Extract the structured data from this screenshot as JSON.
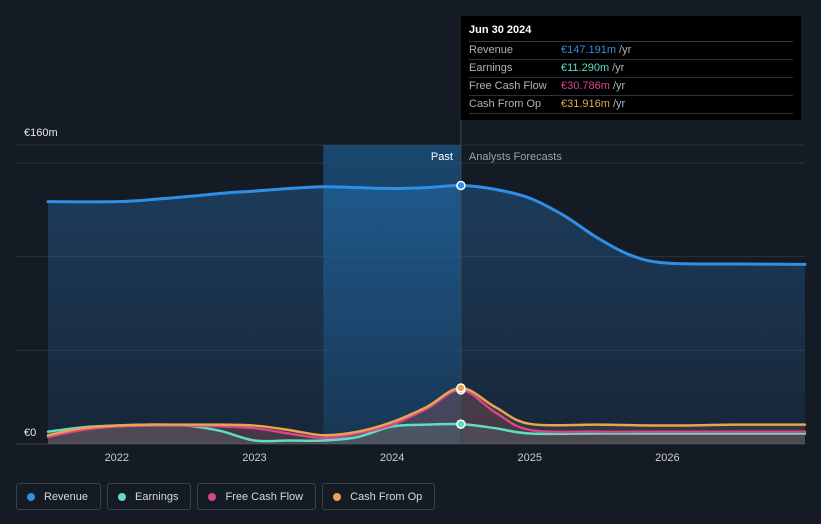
{
  "chart_data": {
    "type": "area",
    "y_axis": {
      "top_label": "€160m",
      "bottom_label": "€0",
      "ylim": [
        0,
        160
      ]
    },
    "x_axis": {
      "ticks": [
        "2022",
        "2023",
        "2024",
        "2025",
        "2026"
      ],
      "xlim": [
        2021.5,
        2027.0
      ]
    },
    "divider_x": 2024.5,
    "past_label": "Past",
    "forecast_label": "Analysts Forecasts",
    "series": [
      {
        "name": "Revenue",
        "color": "#2f8fe6",
        "points": [
          [
            2021.5,
            138
          ],
          [
            2022.0,
            138
          ],
          [
            2022.3,
            139.5
          ],
          [
            2022.6,
            141.5
          ],
          [
            2022.8,
            143
          ],
          [
            2023.0,
            144
          ],
          [
            2023.25,
            145.5
          ],
          [
            2023.5,
            146.5
          ],
          [
            2023.75,
            146
          ],
          [
            2024.0,
            145.5
          ],
          [
            2024.25,
            146
          ],
          [
            2024.5,
            147.2
          ],
          [
            2024.75,
            145
          ],
          [
            2025.0,
            140
          ],
          [
            2025.25,
            130
          ],
          [
            2025.5,
            117
          ],
          [
            2025.75,
            107
          ],
          [
            2026.0,
            103
          ],
          [
            2026.5,
            102.5
          ],
          [
            2027.0,
            102.3
          ]
        ]
      },
      {
        "name": "Earnings",
        "color": "#5fdcc2",
        "points": [
          [
            2021.5,
            7
          ],
          [
            2021.75,
            9.5
          ],
          [
            2022.0,
            10.5
          ],
          [
            2022.25,
            11
          ],
          [
            2022.5,
            10.5
          ],
          [
            2022.75,
            7.5
          ],
          [
            2023.0,
            2
          ],
          [
            2023.25,
            2
          ],
          [
            2023.5,
            2
          ],
          [
            2023.75,
            4
          ],
          [
            2024.0,
            10
          ],
          [
            2024.25,
            11
          ],
          [
            2024.5,
            11.3
          ],
          [
            2024.75,
            9
          ],
          [
            2025.0,
            6
          ],
          [
            2025.5,
            6
          ],
          [
            2026.0,
            6
          ],
          [
            2026.5,
            6
          ],
          [
            2027.0,
            6
          ]
        ]
      },
      {
        "name": "Free Cash Flow",
        "color": "#d9458a",
        "points": [
          [
            2021.5,
            4
          ],
          [
            2021.75,
            8
          ],
          [
            2022.0,
            10
          ],
          [
            2022.25,
            10.5
          ],
          [
            2022.5,
            10.5
          ],
          [
            2022.75,
            10
          ],
          [
            2023.0,
            9
          ],
          [
            2023.25,
            6
          ],
          [
            2023.5,
            3.5
          ],
          [
            2023.75,
            6
          ],
          [
            2024.0,
            11
          ],
          [
            2024.25,
            20
          ],
          [
            2024.5,
            30.8
          ],
          [
            2024.75,
            18
          ],
          [
            2025.0,
            8
          ],
          [
            2025.5,
            7
          ],
          [
            2026.0,
            7
          ],
          [
            2026.5,
            7
          ],
          [
            2027.0,
            7
          ]
        ]
      },
      {
        "name": "Cash From Op",
        "color": "#e8a451",
        "points": [
          [
            2021.5,
            5
          ],
          [
            2021.75,
            9
          ],
          [
            2022.0,
            10.5
          ],
          [
            2022.25,
            11
          ],
          [
            2022.5,
            11
          ],
          [
            2022.75,
            11
          ],
          [
            2023.0,
            10.5
          ],
          [
            2023.25,
            8
          ],
          [
            2023.5,
            5
          ],
          [
            2023.75,
            7
          ],
          [
            2024.0,
            12.5
          ],
          [
            2024.25,
            21
          ],
          [
            2024.5,
            31.9
          ],
          [
            2024.75,
            21
          ],
          [
            2025.0,
            11.5
          ],
          [
            2025.5,
            11
          ],
          [
            2026.0,
            10.5
          ],
          [
            2026.5,
            11
          ],
          [
            2027.0,
            11
          ]
        ]
      }
    ],
    "tooltip": {
      "date": "Jun 30 2024",
      "rows": [
        {
          "name": "Revenue",
          "value": "€147.191m",
          "unit": "/yr",
          "color": "#2f8fe6"
        },
        {
          "name": "Earnings",
          "value": "€11.290m",
          "unit": "/yr",
          "color": "#5fdcc2"
        },
        {
          "name": "Free Cash Flow",
          "value": "€30.786m",
          "unit": "/yr",
          "color": "#d9458a"
        },
        {
          "name": "Cash From Op",
          "value": "€31.916m",
          "unit": "/yr",
          "color": "#e8a451"
        }
      ]
    }
  }
}
